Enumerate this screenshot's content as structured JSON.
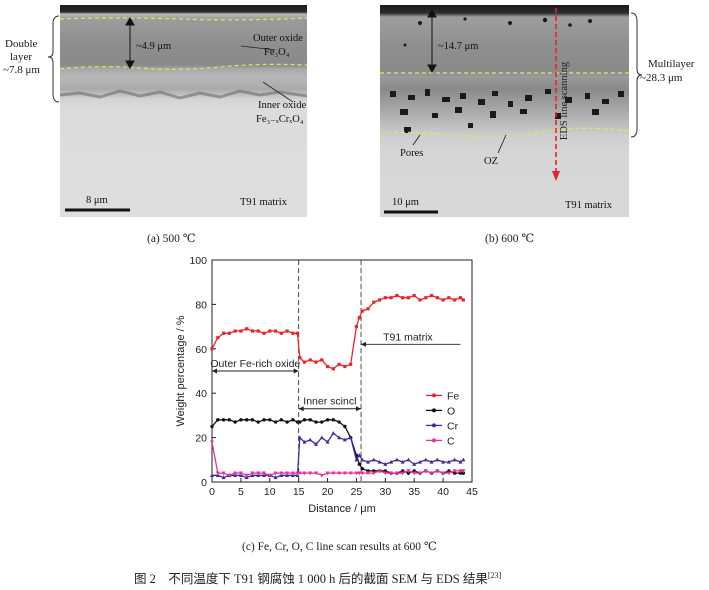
{
  "panel_a": {
    "double_layer_line1": "Double",
    "double_layer_line2": "layer",
    "double_layer_thickness": "~7.8 μm",
    "thickness_label": "~4.9 μm",
    "outer_oxide_line1": "Outer oxide",
    "outer_oxide_formula": "Fe₃O₄",
    "inner_oxide_line1": "Inner oxide",
    "inner_oxide_formula": "Fe₃₋ₓCrₓO₄",
    "scale_bar": "8 μm",
    "matrix_label": "T91 matrix",
    "caption": "(a) 500 ℃"
  },
  "panel_b": {
    "thickness_label": "~14.7 μm",
    "eds_label": "EDS line scanning",
    "multilayer_line1": "Multilayer",
    "multilayer_thickness": "~28.3 μm",
    "pores_label": "Pores",
    "oz_label": "OZ",
    "scale_bar": "10 μm",
    "matrix_label": "T91 matrix",
    "caption": "(b) 600 ℃"
  },
  "panel_c": {
    "caption": "(c) Fe, Cr, O, C line scan results at 600 ℃"
  },
  "figure_caption": "图 2　不同温度下 T91 钢腐蚀 1 000 h 后的截面 SEM 与 EDS 结果",
  "figure_caption_ref": "[23]",
  "chart_data": {
    "type": "line",
    "xlabel": "Distance / μm",
    "ylabel": "Weight percentage / %",
    "xlim": [
      0,
      45
    ],
    "ylim": [
      0,
      100
    ],
    "xticks": [
      0,
      5,
      10,
      15,
      20,
      25,
      30,
      35,
      40,
      45
    ],
    "yticks": [
      0,
      20,
      40,
      60,
      80,
      100
    ],
    "grid": false,
    "legend_position": "right",
    "region_dividers_x": [
      15,
      25.8
    ],
    "annotations": [
      {
        "text": "Outer Fe-rich oxide",
        "x_from": 0,
        "x_to": 15,
        "y": 50
      },
      {
        "text": "Inner scincl",
        "x_from": 15,
        "x_to": 25.8,
        "y": 33
      },
      {
        "text": "T91 matrix",
        "x_from": 25.8,
        "x_to": 43,
        "y": 62
      }
    ],
    "x": [
      0,
      1,
      2,
      3,
      4,
      5,
      6,
      7,
      8,
      9,
      10,
      11,
      12,
      13,
      14,
      14.8,
      15.2,
      16,
      17,
      18,
      19,
      20,
      21,
      22,
      23,
      24,
      25,
      25.5,
      26,
      27,
      28,
      29,
      30,
      31,
      32,
      33,
      34,
      35,
      36,
      37,
      38,
      39,
      40,
      41,
      42,
      43,
      43.5
    ],
    "series": [
      {
        "name": "Fe",
        "color": "#e8252a",
        "marker": "square",
        "values": [
          60,
          65,
          67,
          67,
          68,
          68,
          69,
          68,
          68,
          67,
          68,
          68,
          67,
          68,
          67,
          67,
          56,
          54,
          55,
          54,
          55,
          52,
          51,
          53,
          52,
          53,
          70,
          74,
          77,
          78,
          81,
          82,
          83,
          83,
          84,
          83,
          83,
          84,
          82,
          83,
          84,
          83,
          82,
          83,
          82,
          83,
          82
        ]
      },
      {
        "name": "O",
        "color": "#111111",
        "marker": "circle",
        "values": [
          25,
          28,
          28,
          28,
          27,
          28,
          28,
          28,
          27,
          28,
          28,
          27,
          28,
          27,
          28,
          27,
          27,
          28,
          28,
          27,
          27,
          28,
          28,
          27,
          25,
          20,
          12,
          8,
          6,
          5,
          5,
          5,
          5,
          4,
          4,
          5,
          4,
          5,
          4,
          5,
          4,
          5,
          4,
          5,
          4,
          4,
          4
        ]
      },
      {
        "name": "Cr",
        "color": "#3b2fa0",
        "marker": "triangle",
        "values": [
          3,
          3,
          2,
          3,
          3,
          3,
          2,
          3,
          3,
          3,
          3,
          2,
          3,
          3,
          3,
          3,
          20,
          18,
          19,
          17,
          20,
          18,
          22,
          20,
          19,
          20,
          10,
          12,
          10,
          9,
          10,
          9,
          8,
          9,
          10,
          9,
          10,
          8,
          9,
          10,
          9,
          10,
          9,
          9,
          10,
          9,
          10
        ]
      },
      {
        "name": "C",
        "color": "#e6329c",
        "marker": "triangle-down",
        "values": [
          18,
          4,
          4,
          3,
          4,
          4,
          3,
          4,
          4,
          4,
          3,
          4,
          4,
          4,
          4,
          4,
          4,
          4,
          4,
          4,
          3,
          4,
          4,
          4,
          4,
          4,
          4,
          4,
          4,
          4,
          4,
          5,
          4,
          4,
          4,
          4,
          5,
          4,
          4,
          5,
          4,
          5,
          4,
          4,
          5,
          5,
          5
        ]
      }
    ]
  }
}
